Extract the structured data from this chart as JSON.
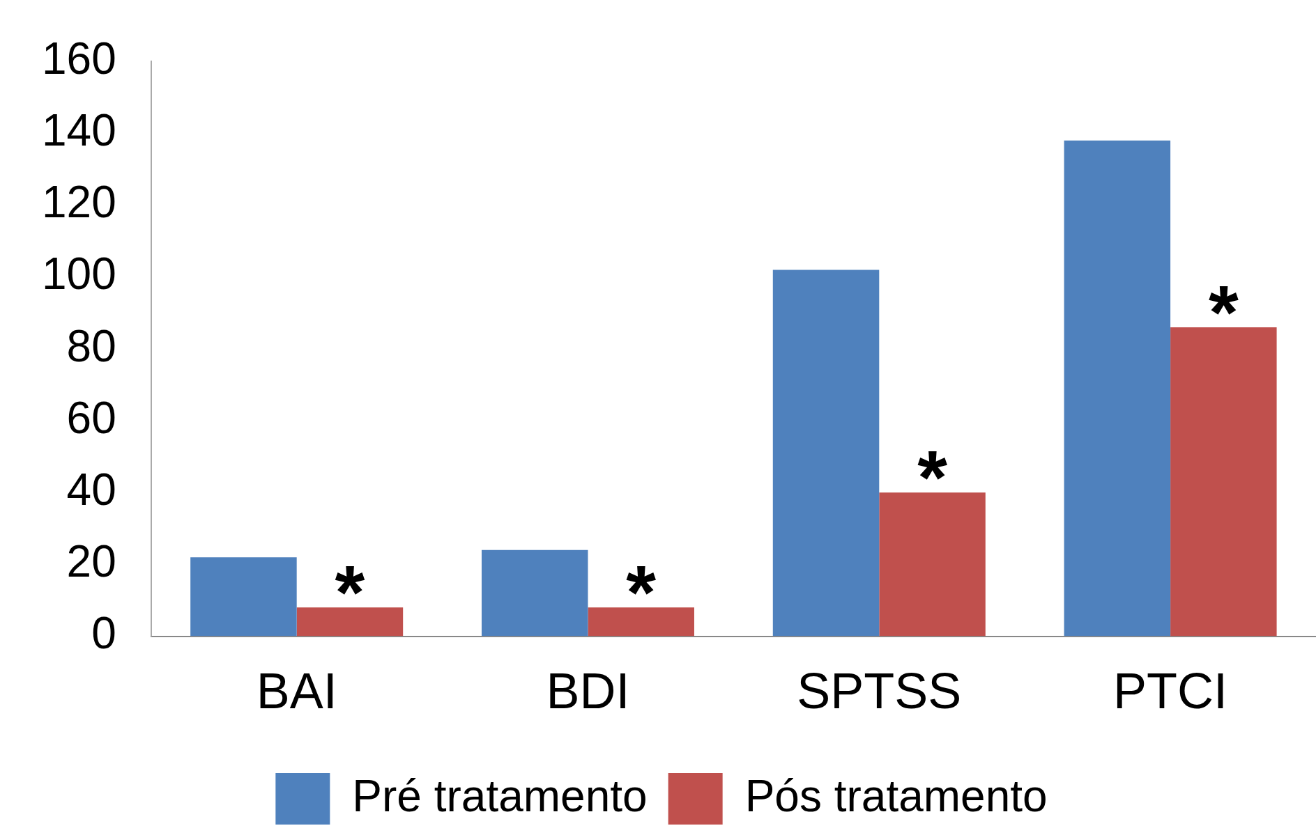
{
  "chart_data": {
    "type": "bar",
    "categories": [
      "BAI",
      "BDI",
      "SPTSS",
      "PTCI"
    ],
    "series": [
      {
        "name": "Pré tratamento",
        "color": "#4f81bd",
        "values": [
          22,
          24,
          102,
          138
        ]
      },
      {
        "name": "Pós tratamento",
        "color": "#c0504d",
        "values": [
          8,
          8,
          40,
          86
        ]
      }
    ],
    "ylim": [
      0,
      160
    ],
    "yticks": [
      0,
      20,
      40,
      60,
      80,
      100,
      120,
      140,
      160
    ],
    "grid": false,
    "legend": "bottom",
    "annotations": [
      {
        "text": "*",
        "x": "BAI",
        "y": 8
      },
      {
        "text": "*",
        "x": "BDI",
        "y": 8
      },
      {
        "text": "*",
        "x": "SPTSS",
        "y": 40
      },
      {
        "text": "*",
        "x": "PTCI",
        "y": 86
      }
    ]
  }
}
